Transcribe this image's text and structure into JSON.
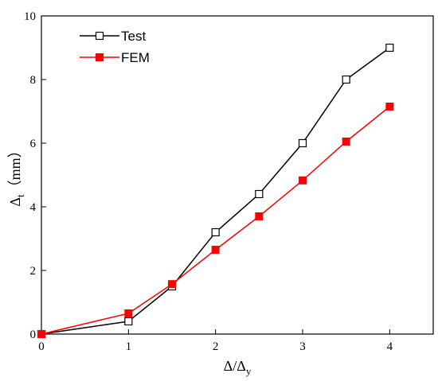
{
  "chart_data": {
    "type": "line",
    "xlabel": {
      "main": "Δ/Δ",
      "sub": "y"
    },
    "ylabel": {
      "main": "Δ",
      "sub": "t",
      "unit": "（mm）"
    },
    "xlim": [
      0,
      4.5
    ],
    "ylim": [
      0,
      10
    ],
    "x_ticks": [
      0,
      1,
      2,
      3,
      4
    ],
    "y_ticks": [
      0,
      2,
      4,
      6,
      8,
      10
    ],
    "grid": false,
    "legend_position": "top-left",
    "series": [
      {
        "name": "Test",
        "color": "#000000",
        "marker": "open-square",
        "x": [
          0,
          1,
          1.5,
          2,
          2.5,
          3,
          3.5,
          4
        ],
        "y": [
          0,
          0.4,
          1.5,
          3.2,
          4.4,
          6.0,
          8.0,
          9.0
        ]
      },
      {
        "name": "FEM",
        "color": "#ff0000",
        "marker": "filled-square",
        "x": [
          0,
          1,
          1.5,
          2,
          2.5,
          3,
          3.5,
          4
        ],
        "y": [
          0,
          0.65,
          1.57,
          2.65,
          3.7,
          4.83,
          6.05,
          7.15
        ]
      }
    ]
  }
}
